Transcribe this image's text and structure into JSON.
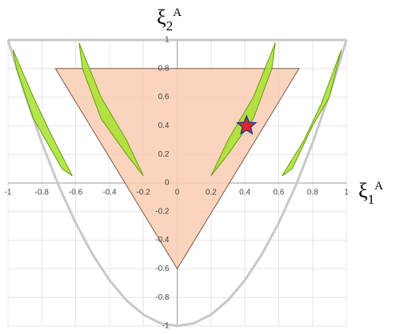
{
  "chart_data": {
    "type": "line",
    "x_label": {
      "symbol": "ξ",
      "sub": "1",
      "sup": "A"
    },
    "y_label": {
      "symbol": "ξ",
      "sub": "2",
      "sup": "A"
    },
    "xlim": [
      -1,
      1
    ],
    "ylim": [
      -1,
      1
    ],
    "xticks": [
      -1,
      -0.8,
      -0.6,
      -0.4,
      -0.2,
      0,
      0.2,
      0.4,
      0.6,
      0.8,
      1
    ],
    "yticks": [
      -1,
      -0.8,
      -0.6,
      -0.4,
      -0.2,
      0,
      0.2,
      0.4,
      0.6,
      0.8,
      1
    ],
    "grid": true,
    "series": [
      {
        "color": "#c8c8c8",
        "x": [
          -1,
          -0.9,
          -0.8,
          -0.7,
          -0.6,
          -0.5,
          -0.4,
          -0.3,
          -0.2,
          -0.1,
          0,
          0.1,
          0.2,
          0.3,
          0.4,
          0.5,
          0.6,
          0.7,
          0.8,
          0.9,
          1
        ],
        "values": [
          1,
          0.62,
          0.28,
          -0.02,
          -0.28,
          -0.5,
          -0.68,
          -0.82,
          -0.92,
          -0.98,
          -1,
          -0.98,
          -0.92,
          -0.82,
          -0.68,
          -0.5,
          -0.28,
          -0.02,
          0.28,
          0.62,
          1
        ]
      },
      {
        "color": "#c8c8c8",
        "x": [
          -1,
          1
        ],
        "values": [
          1,
          1
        ]
      },
      {
        "color": "#7a5a4a",
        "fill": "#f9cdb0",
        "x": [
          -0.72,
          0.72,
          0
        ],
        "values": [
          0.8,
          0.8,
          -0.6
        ]
      },
      {
        "color": "#6a9a10",
        "fill": "#a6e22e",
        "x": [
          -0.97,
          -0.85,
          -0.75,
          -0.62,
          -0.68,
          -0.85,
          -0.95
        ],
        "values": [
          0.93,
          0.6,
          0.35,
          0.05,
          0.1,
          0.45,
          0.8
        ]
      },
      {
        "color": "#6a9a10",
        "fill": "#a6e22e",
        "x": [
          -0.58,
          -0.45,
          -0.3,
          -0.2,
          -0.3,
          -0.45,
          -0.56
        ],
        "values": [
          0.98,
          0.6,
          0.3,
          0.05,
          0.2,
          0.45,
          0.8
        ]
      },
      {
        "color": "#6a9a10",
        "fill": "#a6e22e",
        "x": [
          0.2,
          0.3,
          0.45,
          0.58,
          0.56,
          0.45,
          0.3
        ],
        "values": [
          0.05,
          0.3,
          0.6,
          0.98,
          0.8,
          0.45,
          0.2
        ]
      },
      {
        "color": "#6a9a10",
        "fill": "#a6e22e",
        "x": [
          0.62,
          0.75,
          0.85,
          0.97,
          0.9,
          0.8,
          0.68
        ],
        "values": [
          0.05,
          0.3,
          0.55,
          0.93,
          0.6,
          0.4,
          0.1
        ]
      },
      {
        "color": "#2b3a8c",
        "fill": "#e8202a",
        "marker": "star",
        "x": [
          0.41
        ],
        "values": [
          0.4
        ]
      }
    ]
  }
}
